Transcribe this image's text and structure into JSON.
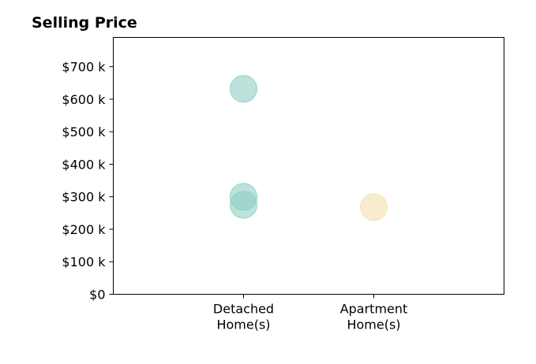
{
  "chart_data": {
    "type": "scatter",
    "title": "Selling Price",
    "xlabel": "",
    "ylabel": "",
    "categories": [
      [
        "Detached",
        "Home(s)"
      ],
      [
        "Apartment",
        "Home(s)"
      ]
    ],
    "x_range": [
      -1,
      2
    ],
    "ylim": [
      0,
      790000
    ],
    "y_ticks": [
      0,
      100000,
      200000,
      300000,
      400000,
      500000,
      600000,
      700000
    ],
    "y_tick_labels": [
      "$0",
      "$100 k",
      "$200 k",
      "$300 k",
      "$400 k",
      "$500 k",
      "$600 k",
      "$700 k"
    ],
    "grid": false,
    "points": [
      {
        "category_index": 0,
        "value": 632000,
        "color": "#8ecfc3"
      },
      {
        "category_index": 0,
        "value": 300000,
        "color": "#8ecfc3"
      },
      {
        "category_index": 0,
        "value": 275000,
        "color": "#8ecfc3"
      },
      {
        "category_index": 1,
        "value": 268000,
        "color": "#f5dfae"
      }
    ],
    "marker_opacity": 0.6
  }
}
